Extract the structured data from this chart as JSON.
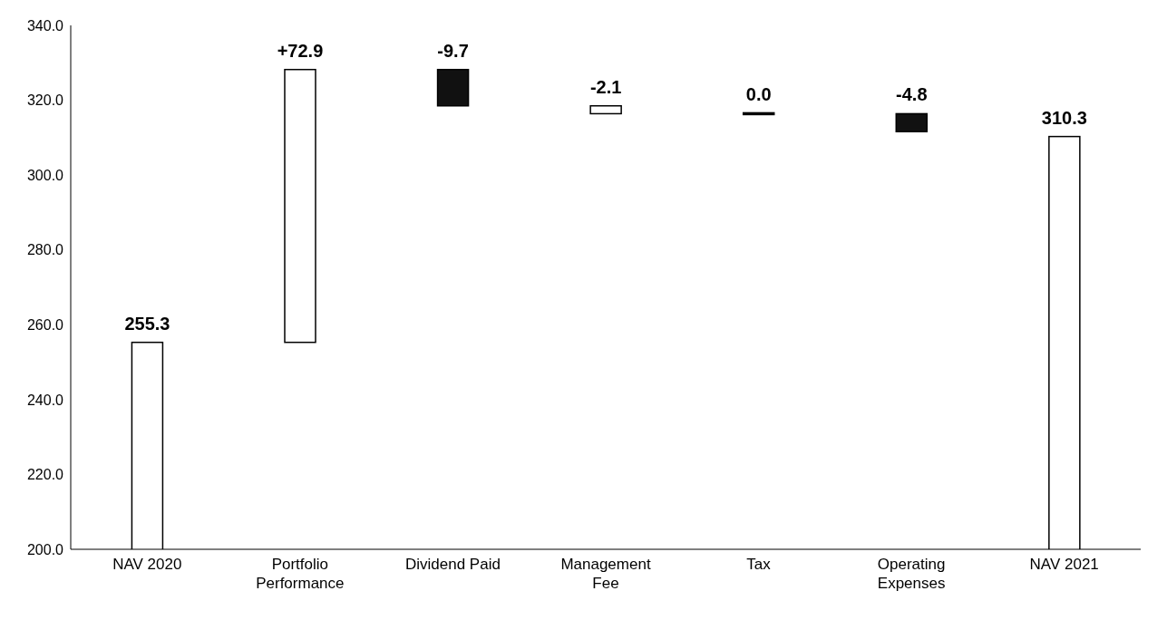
{
  "chart_data": {
    "type": "bar",
    "categories": [
      "NAV 2020",
      "Portfolio Performance",
      "Dividend Paid",
      "Management Fee",
      "Tax",
      "Operating Expenses",
      "NAV 2021"
    ],
    "values": [
      255.3,
      72.9,
      -9.7,
      -2.1,
      0.0,
      -4.8,
      310.3
    ],
    "base": [
      0,
      255.3,
      328.2,
      318.5,
      316.4,
      316.4,
      0
    ],
    "colors": [
      "#ffffff",
      "#ffffff",
      "#111111",
      "#ffffff",
      "#000000",
      "#111111",
      "#ffffff"
    ],
    "value_labels": [
      "255.3",
      "+72.9",
      "-9.7",
      "-2.1",
      "0.0",
      "-4.8",
      "310.3"
    ],
    "ylim": [
      200,
      340
    ],
    "yticks": [
      {
        "value": 200,
        "label": "200.0"
      },
      {
        "value": 220,
        "label": "220.0"
      },
      {
        "value": 240,
        "label": "240.0"
      },
      {
        "value": 260,
        "label": "260.0"
      },
      {
        "value": 280,
        "label": "280.0"
      },
      {
        "value": 300,
        "label": "300.0"
      },
      {
        "value": 320,
        "label": "320.0"
      },
      {
        "value": 340,
        "label": "340.0"
      }
    ],
    "grid": false,
    "legend": false
  }
}
